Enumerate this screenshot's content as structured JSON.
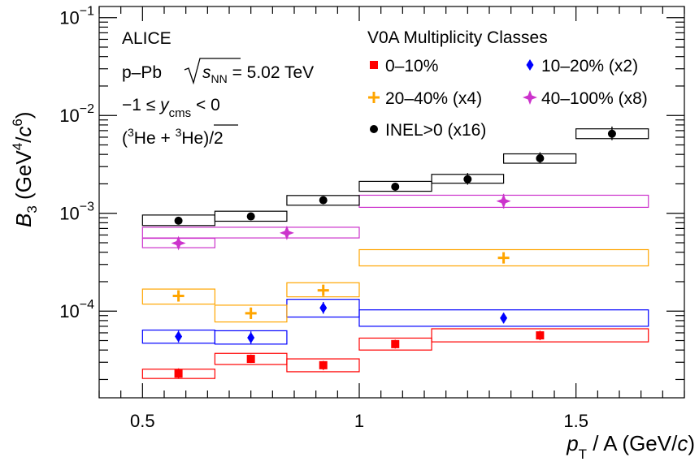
{
  "chart_data": {
    "type": "scatter",
    "xscale": "linear",
    "yscale": "log",
    "xlim": [
      0.4,
      1.75
    ],
    "ylim": [
      1.3e-05,
      0.13
    ],
    "xticks": [
      0.5,
      1.0,
      1.5
    ],
    "xtick_labels": [
      "0.5",
      "1",
      "1.5"
    ],
    "yticks": [
      0.0001,
      0.001,
      0.01,
      0.1
    ],
    "ytick_labels": [
      {
        "base": "10",
        "exp": "−4"
      },
      {
        "base": "10",
        "exp": "−3"
      },
      {
        "base": "10",
        "exp": "−2"
      },
      {
        "base": "10",
        "exp": "−1"
      }
    ],
    "xlabel": {
      "main": "p",
      "sub": "T",
      "rest": " / A (GeV/",
      "unit_italic": "c",
      "close": ")"
    },
    "ylabel": {
      "main": "B",
      "sub": "3",
      "rest": " (GeV",
      "sup1": "4",
      "mid": "/",
      "unit_italic": "c",
      "sup2": "6",
      "close": ")"
    },
    "annotations": {
      "experiment": "ALICE",
      "system": "p–Pb",
      "energy_sym": "s",
      "energy_sub": "NN",
      "energy_val": " = 5.02 TeV",
      "rapidity_pre": "−1 ≤ ",
      "rapidity_sym": "y",
      "rapidity_sub": "cms",
      "rapidity_post": " < 0",
      "particle_open": "(",
      "particle_sup": "3",
      "particle_he": "He + ",
      "particle_sup2": "3",
      "particle_anti": "He",
      "particle_close": ")/2"
    },
    "legend_title": "V0A Multiplicity Classes",
    "legend_placement": "top-right",
    "series": [
      {
        "name": "0–10%",
        "color": "#ff0000",
        "marker": "square",
        "points": [
          {
            "x": 0.583,
            "y": 2.3e-05,
            "xlo": 0.5,
            "xhi": 0.667,
            "eylo": 2.05e-05,
            "eyhi": 2.6e-05,
            "stlo": 2.05e-05,
            "sthi": 2.55e-05
          },
          {
            "x": 0.75,
            "y": 3.25e-05,
            "xlo": 0.667,
            "xhi": 0.833,
            "eylo": 2.95e-05,
            "eyhi": 3.6e-05,
            "stlo": 2.85e-05,
            "sthi": 3.7e-05
          },
          {
            "x": 0.917,
            "y": 2.8e-05,
            "xlo": 0.833,
            "xhi": 1.0,
            "eylo": 2.5e-05,
            "eyhi": 3.1e-05,
            "stlo": 2.4e-05,
            "sthi": 3.25e-05
          },
          {
            "x": 1.083,
            "y": 4.6e-05,
            "xlo": 1.0,
            "xhi": 1.167,
            "eylo": 4.15e-05,
            "eyhi": 5.1e-05,
            "stlo": 4e-05,
            "sthi": 5.3e-05
          },
          {
            "x": 1.417,
            "y": 5.65e-05,
            "xlo": 1.167,
            "xhi": 1.667,
            "eylo": 5.05e-05,
            "eyhi": 6.3e-05,
            "stlo": 4.85e-05,
            "sthi": 6.6e-05
          }
        ]
      },
      {
        "name": "10–20% (x2)",
        "color": "#0000ff",
        "marker": "diamond",
        "points": [
          {
            "x": 0.583,
            "y": 5.5e-05,
            "xlo": 0.5,
            "xhi": 0.667,
            "eylo": 4.8e-05,
            "eyhi": 6.3e-05,
            "stlo": 4.7e-05,
            "sthi": 6.4e-05
          },
          {
            "x": 0.75,
            "y": 5.35e-05,
            "xlo": 0.667,
            "xhi": 0.833,
            "eylo": 4.65e-05,
            "eyhi": 6.2e-05,
            "stlo": 4.6e-05,
            "sthi": 6.3e-05
          },
          {
            "x": 0.917,
            "y": 0.000108,
            "xlo": 0.833,
            "xhi": 1.0,
            "eylo": 9.4e-05,
            "eyhi": 0.000124,
            "stlo": 8.7e-05,
            "sthi": 0.000132
          },
          {
            "x": 1.333,
            "y": 8.5e-05,
            "xlo": 1.0,
            "xhi": 1.667,
            "eylo": 7.5e-05,
            "eyhi": 9.6e-05,
            "stlo": 7e-05,
            "sthi": 0.000103
          }
        ]
      },
      {
        "name": "20–40% (x4)",
        "color": "#ffa500",
        "marker": "cross",
        "points": [
          {
            "x": 0.583,
            "y": 0.000143,
            "xlo": 0.5,
            "xhi": 0.667,
            "eylo": 0.000128,
            "eyhi": 0.00016,
            "stlo": 0.000118,
            "sthi": 0.000168
          },
          {
            "x": 0.75,
            "y": 9.5e-05,
            "xlo": 0.667,
            "xhi": 0.833,
            "eylo": 8.3e-05,
            "eyhi": 0.000109,
            "stlo": 7.75e-05,
            "sthi": 0.000115
          },
          {
            "x": 0.917,
            "y": 0.000163,
            "xlo": 0.833,
            "xhi": 1.0,
            "eylo": 0.000145,
            "eyhi": 0.000183,
            "stlo": 0.00014,
            "sthi": 0.000195
          },
          {
            "x": 1.333,
            "y": 0.00035,
            "xlo": 1.0,
            "xhi": 1.667,
            "eylo": 0.000325,
            "eyhi": 0.000378,
            "stlo": 0.00029,
            "sthi": 0.000425
          }
        ]
      },
      {
        "name": "40–100% (x8)",
        "color": "#cc33cc",
        "marker": "star",
        "points": [
          {
            "x": 0.583,
            "y": 0.000495,
            "xlo": 0.5,
            "xhi": 0.667,
            "eylo": 0.000448,
            "eyhi": 0.000548,
            "stlo": 0.000445,
            "sthi": 0.000555
          },
          {
            "x": 0.833,
            "y": 0.00063,
            "xlo": 0.5,
            "xhi": 1.0,
            "eylo": 0.000575,
            "eyhi": 0.000695,
            "stlo": 0.00056,
            "sthi": 0.00072
          },
          {
            "x": 1.333,
            "y": 0.00133,
            "xlo": 1.0,
            "xhi": 1.667,
            "eylo": 0.00112,
            "eyhi": 0.00158,
            "stlo": 0.00115,
            "sthi": 0.00153
          }
        ]
      },
      {
        "name": "INEL>0 (x16)",
        "color": "#000000",
        "marker": "circle",
        "points": [
          {
            "x": 0.583,
            "y": 0.00084,
            "xlo": 0.5,
            "xhi": 0.667,
            "eylo": 0.000785,
            "eyhi": 0.0009,
            "stlo": 0.00075,
            "sthi": 0.00096
          },
          {
            "x": 0.75,
            "y": 0.00093,
            "xlo": 0.667,
            "xhi": 0.833,
            "eylo": 0.00087,
            "eyhi": 0.001,
            "stlo": 0.00083,
            "sthi": 0.00105
          },
          {
            "x": 0.917,
            "y": 0.00136,
            "xlo": 0.833,
            "xhi": 1.0,
            "eylo": 0.00128,
            "eyhi": 0.00145,
            "stlo": 0.00121,
            "sthi": 0.00152
          },
          {
            "x": 1.083,
            "y": 0.00187,
            "xlo": 1.0,
            "xhi": 1.167,
            "eylo": 0.00172,
            "eyhi": 0.00205,
            "stlo": 0.00168,
            "sthi": 0.00212
          },
          {
            "x": 1.25,
            "y": 0.00223,
            "xlo": 1.167,
            "xhi": 1.333,
            "eylo": 0.00196,
            "eyhi": 0.00258,
            "stlo": 0.00203,
            "sthi": 0.0025
          },
          {
            "x": 1.417,
            "y": 0.00365,
            "xlo": 1.333,
            "xhi": 1.5,
            "eylo": 0.00325,
            "eyhi": 0.0042,
            "stlo": 0.00325,
            "sthi": 0.00405
          },
          {
            "x": 1.583,
            "y": 0.0065,
            "xlo": 1.5,
            "xhi": 1.667,
            "eylo": 0.0056,
            "eyhi": 0.0077,
            "stlo": 0.0058,
            "sthi": 0.0073
          }
        ]
      }
    ]
  }
}
